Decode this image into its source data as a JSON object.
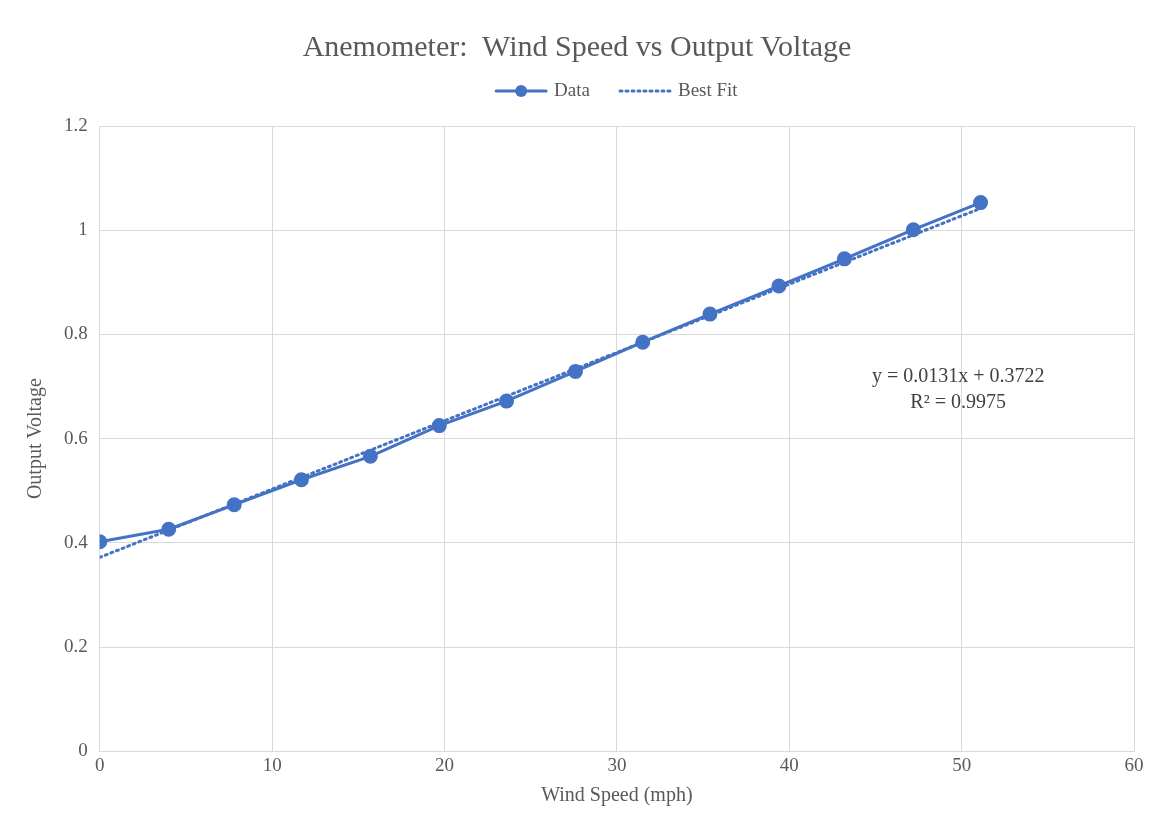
{
  "chart_data": {
    "type": "scatter",
    "title": "Anemometer:  Wind Speed vs Output Voltage",
    "xlabel": "Wind Speed (mph)",
    "ylabel": "Output Voltage",
    "series": [
      {
        "name": "Data",
        "type": "line",
        "color": "#4472c4",
        "marker": "circle",
        "line_style": "solid",
        "x": [
          0,
          4.0,
          7.8,
          11.7,
          15.7,
          19.7,
          23.6,
          27.6,
          31.5,
          35.4,
          39.4,
          43.2,
          47.2,
          51.1
        ],
        "values": [
          0.402,
          0.426,
          0.473,
          0.521,
          0.566,
          0.625,
          0.672,
          0.729,
          0.785,
          0.839,
          0.893,
          0.945,
          1.001,
          1.053
        ]
      },
      {
        "name": "Best Fit",
        "type": "line",
        "color": "#4472c4",
        "marker": "none",
        "line_style": "dotted",
        "x": [
          0,
          51.1
        ],
        "values": [
          0.372,
          1.042
        ]
      }
    ],
    "annotations": [
      "y = 0.0131x + 0.3722",
      "R² = 0.9975"
    ],
    "xlim": [
      0,
      60
    ],
    "xticks": [
      0,
      10,
      20,
      30,
      40,
      50,
      60
    ],
    "ylim": [
      0,
      1.2
    ],
    "yticks": [
      0,
      0.2,
      0.4,
      0.6,
      0.8,
      1,
      1.2
    ],
    "grid": true,
    "legend": "top"
  }
}
